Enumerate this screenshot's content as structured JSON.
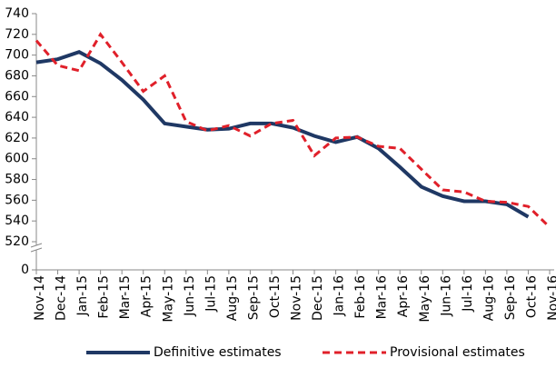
{
  "chart_data": {
    "type": "line",
    "categories": [
      "Nov-14",
      "Dec-14",
      "Jan-15",
      "Feb-15",
      "Mar-15",
      "Apr-15",
      "May-15",
      "Jun-15",
      "Jul-15",
      "Aug-15",
      "Sep-15",
      "Oct-15",
      "Nov-15",
      "Dec-15",
      "Jan-16",
      "Feb-16",
      "Mar-16",
      "Apr-16",
      "May-16",
      "Jun-16",
      "Jul-16",
      "Aug-16",
      "Sep-16",
      "Oct-16",
      "Nov-16"
    ],
    "series": [
      {
        "name": "Definitive estimates",
        "color": "#1f3864",
        "dash": false,
        "values": [
          693,
          696,
          703,
          692,
          676,
          657,
          634,
          631,
          628,
          629,
          634,
          634,
          630,
          622,
          616,
          621,
          610,
          592,
          573,
          564,
          559,
          559,
          556,
          544,
          null
        ]
      },
      {
        "name": "Provisional estimates",
        "color": "#e0202a",
        "dash": true,
        "values": [
          714,
          690,
          685,
          720,
          693,
          665,
          680,
          636,
          627,
          632,
          622,
          634,
          637,
          603,
          620,
          621,
          612,
          610,
          590,
          570,
          568,
          559,
          558,
          554,
          534
        ]
      }
    ],
    "ylim": [
      0,
      740
    ],
    "yticks": [
      0,
      520,
      540,
      560,
      580,
      600,
      620,
      640,
      660,
      680,
      700,
      720,
      740
    ],
    "axis_break": true,
    "grid": false,
    "legend": "bottom"
  }
}
